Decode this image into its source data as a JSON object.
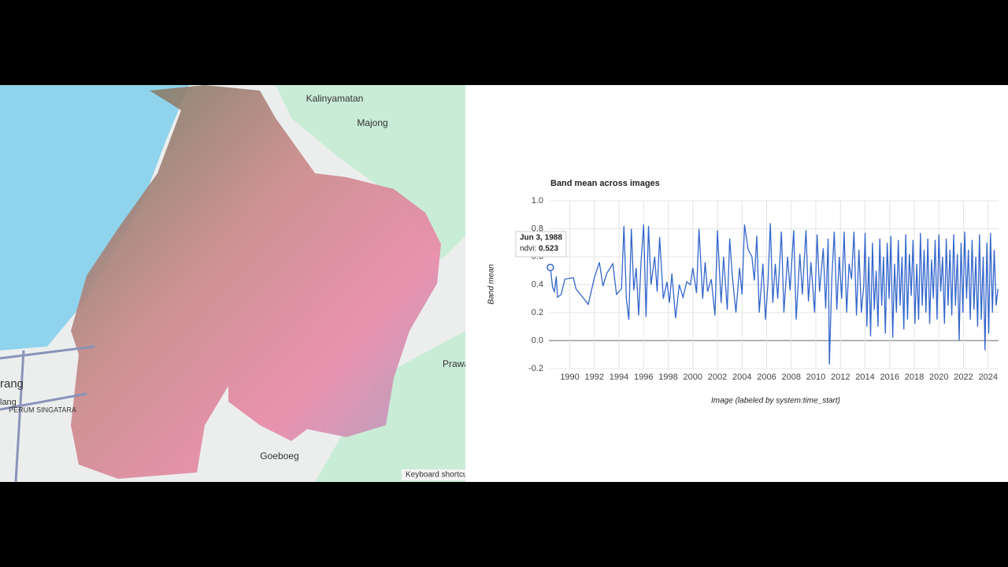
{
  "map": {
    "labels": [
      "Kalinyamatan",
      "Majong",
      "Prawa",
      "rang",
      "lang",
      "PERUM SINGATARA",
      "Goeboeg",
      "Keyboard shortcu"
    ]
  },
  "chart_data": {
    "type": "line",
    "title": "Band mean across images",
    "xlabel": "Image (labeled by system:time_start)",
    "ylabel": "Band mean",
    "x": [
      1988.42,
      1988.6,
      1988.75,
      1988.9,
      1989.0,
      1989.3,
      1989.6,
      1990.3,
      1990.5,
      1991.5,
      1992.0,
      1992.4,
      1992.7,
      1993.0,
      1993.5,
      1993.8,
      1994.2,
      1994.4,
      1994.6,
      1994.8,
      1995.0,
      1995.2,
      1995.4,
      1995.6,
      1995.8,
      1996.0,
      1996.2,
      1996.4,
      1996.6,
      1996.9,
      1997.1,
      1997.3,
      1997.6,
      1997.9,
      1998.1,
      1998.3,
      1998.6,
      1998.9,
      1999.2,
      1999.5,
      1999.8,
      2000.0,
      2000.3,
      2000.5,
      2000.8,
      2001.0,
      2001.2,
      2001.5,
      2001.8,
      2002.0,
      2002.3,
      2002.5,
      2002.8,
      2003.0,
      2003.2,
      2003.5,
      2003.8,
      2004.0,
      2004.2,
      2004.5,
      2004.8,
      2005.0,
      2005.2,
      2005.4,
      2005.7,
      2005.9,
      2006.1,
      2006.3,
      2006.5,
      2006.7,
      2006.9,
      2007.2,
      2007.4,
      2007.7,
      2007.9,
      2008.2,
      2008.4,
      2008.7,
      2008.9,
      2009.2,
      2009.4,
      2009.6,
      2009.9,
      2010.1,
      2010.3,
      2010.6,
      2010.8,
      2011.0,
      2011.1,
      2011.3,
      2011.5,
      2011.7,
      2011.9,
      2012.1,
      2012.3,
      2012.5,
      2012.7,
      2012.9,
      2013.1,
      2013.3,
      2013.5,
      2013.7,
      2013.9,
      2014.0,
      2014.15,
      2014.3,
      2014.45,
      2014.6,
      2014.75,
      2014.9,
      2015.05,
      2015.2,
      2015.35,
      2015.5,
      2015.65,
      2015.8,
      2015.95,
      2016.1,
      2016.25,
      2016.4,
      2016.55,
      2016.7,
      2016.85,
      2017.0,
      2017.15,
      2017.3,
      2017.45,
      2017.6,
      2017.75,
      2017.9,
      2018.05,
      2018.2,
      2018.35,
      2018.5,
      2018.65,
      2018.8,
      2018.95,
      2019.1,
      2019.25,
      2019.4,
      2019.55,
      2019.7,
      2019.85,
      2020.0,
      2020.15,
      2020.3,
      2020.45,
      2020.6,
      2020.75,
      2020.9,
      2021.05,
      2021.2,
      2021.35,
      2021.5,
      2021.65,
      2021.8,
      2021.95,
      2022.1,
      2022.25,
      2022.4,
      2022.55,
      2022.7,
      2022.85,
      2023.0,
      2023.15,
      2023.3,
      2023.45,
      2023.6,
      2023.75,
      2023.9,
      2024.05,
      2024.2,
      2024.35,
      2024.5,
      2024.65,
      2024.8
    ],
    "series": [
      {
        "name": "ndvi",
        "color": "#3366cc",
        "values": [
          0.523,
          0.38,
          0.35,
          0.46,
          0.31,
          0.33,
          0.44,
          0.45,
          0.37,
          0.26,
          0.45,
          0.56,
          0.39,
          0.48,
          0.55,
          0.33,
          0.37,
          0.82,
          0.3,
          0.15,
          0.8,
          0.36,
          0.52,
          0.18,
          0.58,
          0.83,
          0.17,
          0.82,
          0.4,
          0.6,
          0.35,
          0.74,
          0.3,
          0.42,
          0.27,
          0.48,
          0.16,
          0.4,
          0.31,
          0.42,
          0.4,
          0.52,
          0.34,
          0.8,
          0.3,
          0.56,
          0.35,
          0.44,
          0.18,
          0.79,
          0.27,
          0.6,
          0.22,
          0.73,
          0.47,
          0.2,
          0.52,
          0.33,
          0.83,
          0.65,
          0.6,
          0.43,
          0.75,
          0.2,
          0.55,
          0.15,
          0.4,
          0.84,
          0.27,
          0.55,
          0.3,
          0.78,
          0.2,
          0.6,
          0.36,
          0.79,
          0.15,
          0.62,
          0.33,
          0.79,
          0.28,
          0.56,
          0.2,
          0.76,
          0.35,
          0.66,
          0.23,
          0.73,
          -0.17,
          0.45,
          0.78,
          0.22,
          0.6,
          0.3,
          0.78,
          0.2,
          0.55,
          0.44,
          0.78,
          0.18,
          0.65,
          0.2,
          0.4,
          0.77,
          0.1,
          0.6,
          0.03,
          0.7,
          0.22,
          0.5,
          0.1,
          0.73,
          0.25,
          0.6,
          0.05,
          0.7,
          0.3,
          0.75,
          0.02,
          0.55,
          0.2,
          0.72,
          0.25,
          0.6,
          0.08,
          0.76,
          0.15,
          0.62,
          0.32,
          0.72,
          0.12,
          0.55,
          0.15,
          0.77,
          0.25,
          0.65,
          0.2,
          0.73,
          0.12,
          0.58,
          0.3,
          0.72,
          0.15,
          0.76,
          0.35,
          0.6,
          0.12,
          0.73,
          0.25,
          0.65,
          0.18,
          0.76,
          0.25,
          0.62,
          0.0,
          0.7,
          0.2,
          0.78,
          0.3,
          0.65,
          0.15,
          0.72,
          0.22,
          0.6,
          0.1,
          0.76,
          0.15,
          0.6,
          -0.07,
          0.7,
          0.05,
          0.77,
          0.2,
          0.65,
          0.25,
          0.37
        ]
      }
    ],
    "xlim": [
      1988.3,
      2024.85
    ],
    "xticks": [
      1990,
      1992,
      1994,
      1996,
      1998,
      2000,
      2002,
      2004,
      2006,
      2008,
      2010,
      2012,
      2014,
      2016,
      2018,
      2020,
      2022,
      2024
    ],
    "ylim": [
      -0.2,
      1.0
    ],
    "yticks": [
      {
        "value": 1,
        "label": "1.0"
      },
      0.8,
      0.6,
      0.4,
      0.2,
      {
        "value": 0,
        "label": "0.0"
      },
      -0.2
    ],
    "grid": true,
    "tooltip": {
      "date": "Jun 3, 1988",
      "label": "ndvi:",
      "value": 0.523
    }
  }
}
